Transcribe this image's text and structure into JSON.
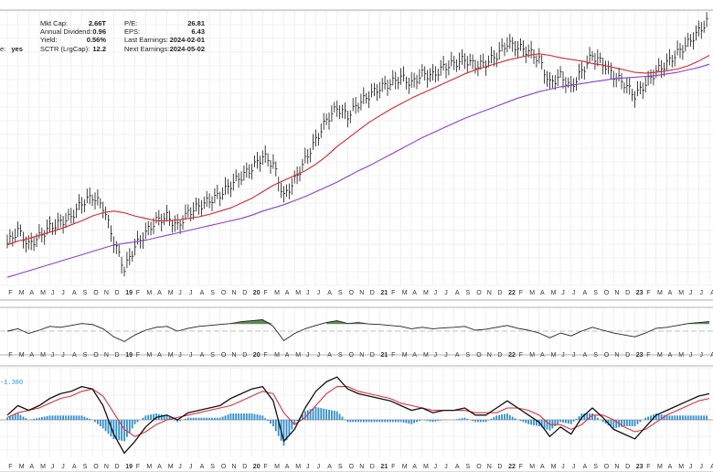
{
  "header": {
    "stats_left": [
      {
        "label": "Mkt Cap:",
        "value": "2.66T"
      },
      {
        "label": "Annual Dividend:",
        "value": "0.96"
      },
      {
        "label": "Yield:",
        "value": "0.56%"
      },
      {
        "label": "SCTR (LrgCap):",
        "value": "12.2"
      }
    ],
    "stats_right": [
      {
        "label": "P/E:",
        "value": "26.81"
      },
      {
        "label": "EPS:",
        "value": "6.43"
      },
      {
        "label": "Last Earnings:",
        "value": "2024-02-01"
      },
      {
        "label": "Next Earnings:",
        "value": "2024-05-02"
      }
    ],
    "partial_row": {
      "label": "e:",
      "value": "yes"
    }
  },
  "macd_indicator_label": "-1.380",
  "colors": {
    "price_bars": "#111111",
    "ma_fast": "#d8262e",
    "ma_slow": "#8a3fd6",
    "oscillator_fill": "#4d7a4a",
    "oscillator_line": "#222222",
    "macd_line": "#111111",
    "macd_signal": "#e0303a",
    "macd_histogram": "#2f8fcf",
    "grid": "#e6e6e6"
  },
  "chart_data": [
    {
      "type": "line",
      "panel": "price",
      "description_type": "ohlc",
      "x": [
        "Jan-18",
        "Feb-18",
        "Mar-18",
        "Apr-18",
        "May-18",
        "Jun-18",
        "Jul-18",
        "Aug-18",
        "Sep-18",
        "Oct-18",
        "Nov-18",
        "Dec-18",
        "Jan-19",
        "Feb-19",
        "Mar-19",
        "Apr-19",
        "May-19",
        "Jun-19",
        "Jul-19",
        "Aug-19",
        "Sep-19",
        "Oct-19",
        "Nov-19",
        "Dec-19",
        "Jan-20",
        "Feb-20",
        "Mar-20",
        "Apr-20",
        "May-20",
        "Jun-20",
        "Jul-20",
        "Aug-20",
        "Sep-20",
        "Oct-20",
        "Nov-20",
        "Dec-20",
        "Jan-21",
        "Feb-21",
        "Mar-21",
        "Apr-21",
        "May-21",
        "Jun-21",
        "Jul-21",
        "Aug-21",
        "Sep-21",
        "Oct-21",
        "Nov-21",
        "Dec-21",
        "Jan-22",
        "Feb-22",
        "Mar-22",
        "Apr-22",
        "May-22",
        "Jun-22",
        "Jul-22",
        "Aug-22",
        "Sep-22",
        "Oct-22",
        "Nov-22",
        "Dec-22",
        "Jan-23",
        "Feb-23",
        "Mar-23",
        "Apr-23",
        "May-23",
        "Jun-23",
        "Jul-23"
      ],
      "series": [
        {
          "values": [
            272,
            288,
            270,
            280,
            292,
            298,
            305,
            322,
            330,
            318,
            275,
            240,
            268,
            285,
            300,
            305,
            293,
            310,
            318,
            325,
            332,
            345,
            355,
            365,
            380,
            370,
            330,
            350,
            375,
            400,
            425,
            440,
            430,
            445,
            455,
            465,
            470,
            478,
            470,
            482,
            480,
            490,
            495,
            500,
            492,
            495,
            505,
            520,
            515,
            510,
            500,
            470,
            480,
            465,
            485,
            505,
            495,
            480,
            470,
            455,
            470,
            485,
            495,
            508,
            520,
            535,
            550
          ]
        },
        {
          "name": "",
          "values": [
            270,
            275,
            278,
            282,
            286,
            290,
            295,
            300,
            306,
            310,
            312,
            310,
            306,
            303,
            300,
            300,
            301,
            303,
            305,
            308,
            312,
            316,
            322,
            328,
            336,
            344,
            350,
            356,
            362,
            370,
            380,
            392,
            402,
            412,
            422,
            430,
            438,
            445,
            452,
            458,
            464,
            470,
            476,
            482,
            487,
            491,
            495,
            499,
            502,
            505,
            507,
            505,
            502,
            500,
            498,
            495,
            493,
            490,
            487,
            484,
            483,
            484,
            486,
            488,
            492,
            498,
            505
          ]
        },
        {
          "name": "",
          "values": [
            230,
            234,
            238,
            242,
            246,
            250,
            254,
            258,
            262,
            266,
            270,
            272,
            274,
            276,
            279,
            282,
            285,
            288,
            291,
            294,
            297,
            300,
            303,
            307,
            312,
            316,
            320,
            325,
            330,
            336,
            342,
            348,
            355,
            362,
            368,
            375,
            382,
            389,
            396,
            403,
            409,
            415,
            421,
            427,
            432,
            437,
            442,
            447,
            452,
            456,
            460,
            463,
            466,
            468,
            470,
            472,
            474,
            476,
            477,
            478,
            479,
            480,
            482,
            484,
            487,
            490,
            494
          ]
        }
      ]
    },
    {
      "type": "line",
      "panel": "oscillator",
      "x_count": 67,
      "series": [
        {
          "values": [
            50,
            55,
            45,
            52,
            60,
            58,
            62,
            66,
            64,
            55,
            38,
            28,
            42,
            52,
            58,
            60,
            50,
            56,
            60,
            62,
            64,
            66,
            70,
            72,
            74,
            60,
            30,
            45,
            55,
            62,
            68,
            72,
            66,
            68,
            65,
            64,
            62,
            60,
            55,
            58,
            55,
            57,
            58,
            60,
            52,
            54,
            58,
            62,
            56,
            52,
            46,
            36,
            46,
            40,
            50,
            58,
            52,
            46,
            42,
            38,
            46,
            56,
            58,
            62,
            66,
            68,
            70
          ]
        }
      ]
    },
    {
      "type": "line",
      "panel": "macd",
      "x_count": 67,
      "series": [
        {
          "name": "",
          "values": [
            0.2,
            0.6,
            0.4,
            0.6,
            0.9,
            1.1,
            1.2,
            1.4,
            1.3,
            0.6,
            -0.6,
            -1.4,
            -0.9,
            -0.3,
            0.1,
            0.2,
            0.0,
            0.3,
            0.4,
            0.5,
            0.6,
            0.9,
            1.1,
            1.3,
            1.4,
            0.8,
            -0.9,
            -0.4,
            0.5,
            1.2,
            1.6,
            1.8,
            1.3,
            1.1,
            1.0,
            0.9,
            0.8,
            0.6,
            0.4,
            0.5,
            0.3,
            0.4,
            0.4,
            0.5,
            0.2,
            0.2,
            0.5,
            0.8,
            0.5,
            0.2,
            -0.1,
            -0.7,
            -0.3,
            -0.6,
            0.1,
            0.5,
            0.1,
            -0.4,
            -0.6,
            -0.8,
            -0.3,
            0.2,
            0.4,
            0.6,
            0.8,
            1.0,
            1.1
          ]
        },
        {
          "name": "",
          "values": [
            0.1,
            0.3,
            0.4,
            0.5,
            0.7,
            0.9,
            1.0,
            1.2,
            1.3,
            1.0,
            0.3,
            -0.4,
            -0.7,
            -0.5,
            -0.2,
            0.0,
            0.1,
            0.2,
            0.3,
            0.4,
            0.5,
            0.6,
            0.8,
            1.0,
            1.2,
            1.1,
            0.3,
            -0.2,
            0.1,
            0.6,
            1.1,
            1.4,
            1.4,
            1.2,
            1.1,
            1.0,
            0.9,
            0.7,
            0.6,
            0.5,
            0.4,
            0.4,
            0.4,
            0.4,
            0.3,
            0.3,
            0.3,
            0.5,
            0.5,
            0.4,
            0.2,
            -0.2,
            -0.2,
            -0.4,
            -0.2,
            0.2,
            0.2,
            0.0,
            -0.3,
            -0.5,
            -0.4,
            -0.1,
            0.2,
            0.4,
            0.6,
            0.8,
            0.9
          ]
        }
      ]
    }
  ],
  "axis_labels": [
    "F",
    "M",
    "A",
    "M",
    "J",
    "J",
    "A",
    "S",
    "O",
    "N",
    "D",
    "19",
    "F",
    "M",
    "A",
    "M",
    "J",
    "J",
    "A",
    "S",
    "O",
    "N",
    "D",
    "20",
    "F",
    "M",
    "A",
    "M",
    "J",
    "J",
    "A",
    "S",
    "O",
    "N",
    "D",
    "21",
    "F",
    "M",
    "A",
    "M",
    "J",
    "J",
    "A",
    "S",
    "O",
    "N",
    "D",
    "22",
    "F",
    "M",
    "A",
    "M",
    "J",
    "J",
    "A",
    "S",
    "O",
    "N",
    "D",
    "23",
    "F",
    "M",
    "A",
    "M",
    "J",
    "J",
    "A"
  ]
}
